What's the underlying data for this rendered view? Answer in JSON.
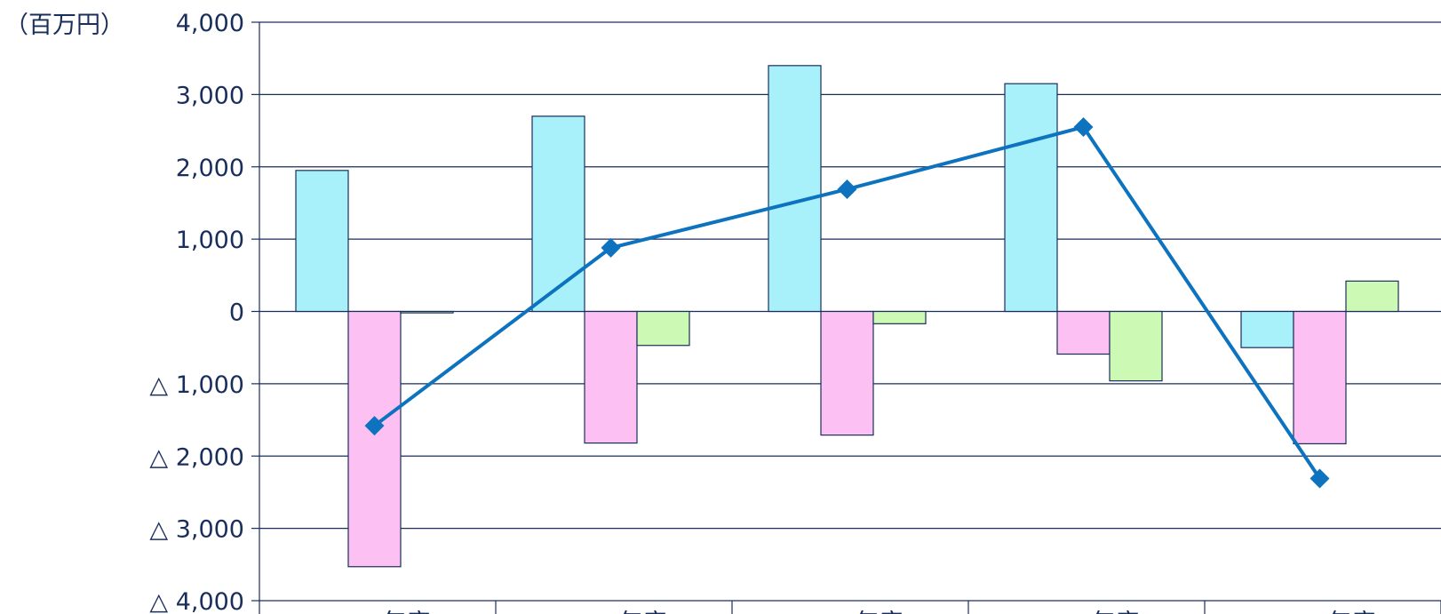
{
  "chart_data": {
    "type": "bar",
    "unit_label": "（百万円）",
    "ylim": [
      -4000,
      4000
    ],
    "y_ticks": [
      4000,
      3000,
      2000,
      1000,
      0,
      -1000,
      -2000,
      -3000,
      -4000
    ],
    "y_tick_labels": [
      "4,000",
      "3,000",
      "2,000",
      "1,000",
      "0",
      "△ 1,000",
      "△ 2,000",
      "△ 3,000",
      "△ 4,000"
    ],
    "grid": true,
    "categories": [
      "年度",
      "年度",
      "年度",
      "年度",
      "年度"
    ],
    "series": [
      {
        "type": "bar",
        "color": "#a8f0fa",
        "values": [
          1950,
          2700,
          3400,
          3150,
          -500
        ]
      },
      {
        "type": "bar",
        "color": "#fcc0f2",
        "values": [
          -3530,
          -1820,
          -1710,
          -590,
          -1830
        ]
      },
      {
        "type": "bar",
        "color": "#ccfab4",
        "values": [
          -20,
          -470,
          -170,
          -960,
          420
        ]
      },
      {
        "type": "line",
        "color": "#0e73bf",
        "marker": "diamond",
        "values": [
          -1580,
          880,
          1690,
          2550,
          -2310
        ]
      }
    ]
  }
}
